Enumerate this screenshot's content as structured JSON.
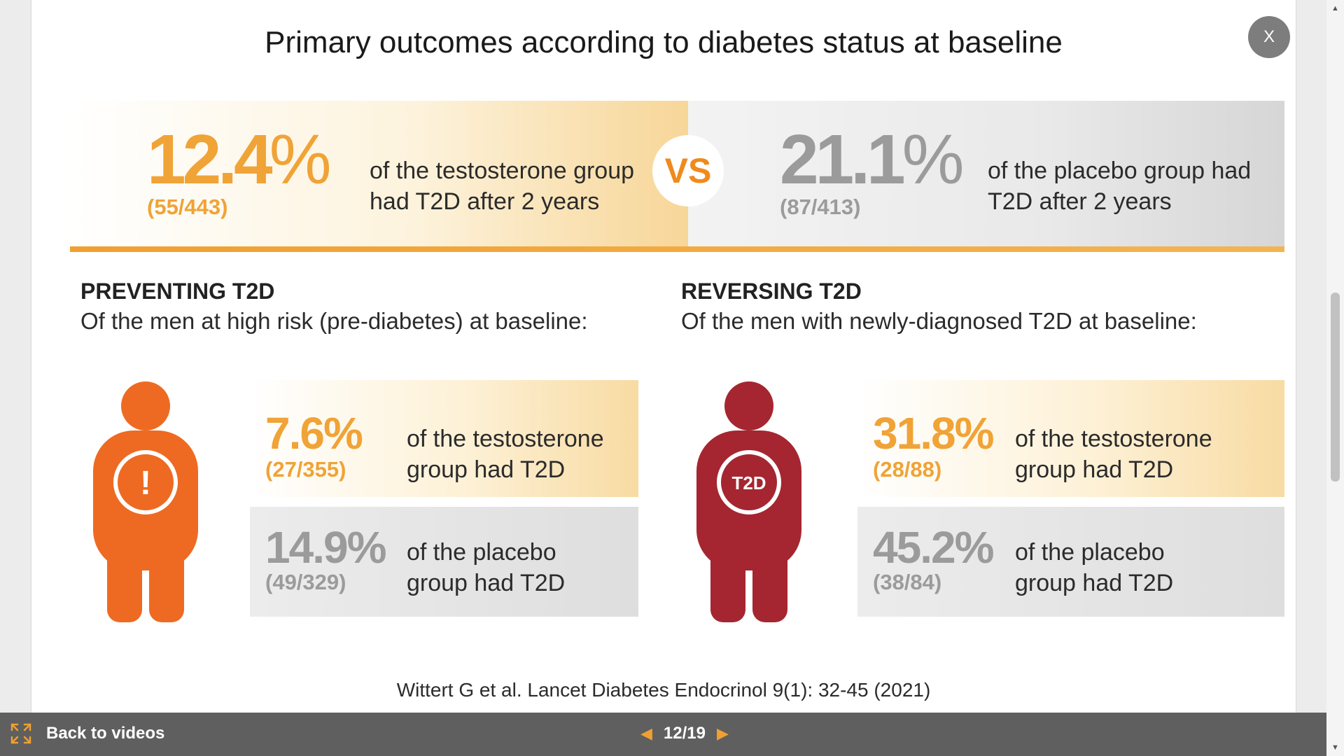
{
  "slide": {
    "title": "Primary outcomes according to diabetes status at baseline",
    "close_label": "X",
    "comparison": {
      "testosterone": {
        "pct_num": "12.4",
        "pct_sym": "%",
        "fraction": "(55/443)",
        "desc_line1": "of the testosterone group",
        "desc_line2": "had T2D after 2 years"
      },
      "vs_label": "VS",
      "placebo": {
        "pct_num": "21.1",
        "pct_sym": "%",
        "fraction": "(87/413)",
        "desc_line1": "of the placebo group had",
        "desc_line2": "T2D after 2 years"
      }
    },
    "preventing": {
      "heading": "PREVENTING T2D",
      "subheading": "Of the men at high risk (pre-diabetes) at baseline:",
      "icon_label": "!",
      "testosterone": {
        "pct": "7.6%",
        "fraction": "(27/355)",
        "desc_line1": "of the testosterone",
        "desc_line2": "group had T2D"
      },
      "placebo": {
        "pct": "14.9%",
        "fraction": "(49/329)",
        "desc_line1": "of the placebo",
        "desc_line2": "group had T2D"
      }
    },
    "reversing": {
      "heading": "REVERSING T2D",
      "subheading": "Of the men with newly-diagnosed T2D at baseline:",
      "icon_label": "T2D",
      "testosterone": {
        "pct": "31.8%",
        "fraction": "(28/88)",
        "desc_line1": "of the testosterone",
        "desc_line2": "group had T2D"
      },
      "placebo": {
        "pct": "45.2%",
        "fraction": "(38/84)",
        "desc_line1": "of the placebo",
        "desc_line2": "group had T2D"
      }
    },
    "citation": "Wittert G et al. Lancet Diabetes Endocrinol 9(1): 32-45 (2021)"
  },
  "bottombar": {
    "back_label": "Back to videos",
    "prev_arrow": "◀",
    "next_arrow": "▶",
    "page_counter": "12/19"
  },
  "scrollbar": {
    "up": "▲",
    "down": "▼"
  },
  "colors": {
    "accent_orange": "#f0a336",
    "figure_orange": "#ee6a22",
    "figure_red": "#a52630",
    "bar_grey": "#5f5f5f"
  },
  "icons": {
    "expand": "expand-icon",
    "figure_prevent": "person-alert-icon",
    "figure_reverse": "person-t2d-icon"
  }
}
